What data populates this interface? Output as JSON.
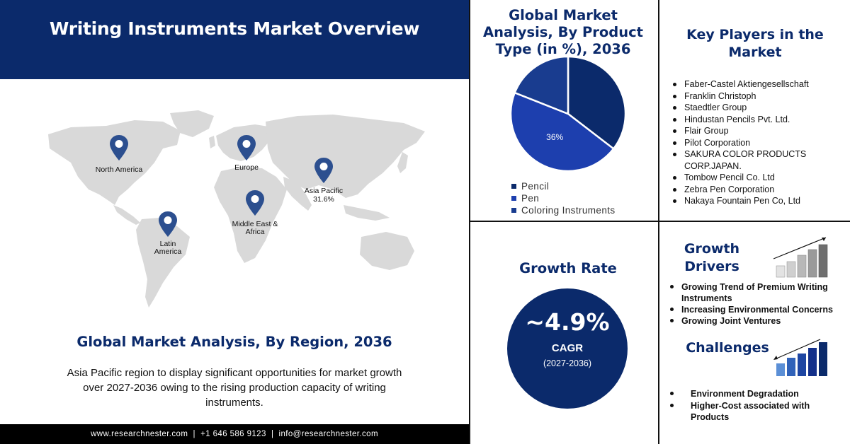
{
  "header": {
    "title": "Writing Instruments Market Overview"
  },
  "map": {
    "regions": [
      {
        "name": "North America",
        "value": ""
      },
      {
        "name": "Europe",
        "value": ""
      },
      {
        "name": "Asia Pacific",
        "value": "31.6%"
      },
      {
        "name": "Middle East & Africa",
        "value": ""
      },
      {
        "name": "Latin America",
        "value": ""
      }
    ],
    "pin_color": "#2c4f8f"
  },
  "region_section": {
    "title": "Global Market Analysis, By Region, 2036",
    "description": "Asia Pacific region to display significant opportunities for market growth over 2027-2036 owing to the rising production capacity of writing instruments."
  },
  "footer": {
    "contact": "www.researchnester.com  |  +1 646 586 9123  |  info@researchnester.com"
  },
  "product_section": {
    "title": "Global Market Analysis, By Product Type (in %), 2036"
  },
  "chart_data": {
    "type": "pie",
    "title": "Global Market Analysis, By Product Type (in %), 2036",
    "categories": [
      "Pencil",
      "Pen",
      "Coloring Instruments"
    ],
    "values": [
      28,
      36,
      15
    ],
    "data_labels": [
      "",
      "36%",
      ""
    ],
    "colors": [
      "#0b2a6b",
      "#1d3fae",
      "#193c8f"
    ],
    "legend_position": "bottom"
  },
  "key_players": {
    "title": "Key Players in the Market",
    "items": [
      "Faber-Castel Aktiengesellschaft",
      "Franklin Christoph",
      "Staedtler Group",
      "Hindustan Pencils Pvt. Ltd.",
      "Flair Group",
      "Pilot Corporation",
      "SAKURA COLOR PRODUCTS CORP.JAPAN.",
      "Tombow Pencil Co. Ltd",
      "Zebra Pen Corporation",
      "Nakaya Fountain Pen Co, Ltd"
    ]
  },
  "growth_rate": {
    "title": "Growth Rate",
    "value": "~4.9%",
    "label": "CAGR",
    "period": "(2027-2036)"
  },
  "growth_drivers": {
    "title": "Growth Drivers",
    "items": [
      "Growing Trend of Premium Writing Instruments",
      "Increasing Environmental Concerns",
      "Growing Joint Ventures"
    ]
  },
  "challenges": {
    "title": "Challenges",
    "items": [
      "Environment Degradation",
      "Higher-Cost associated with Products"
    ]
  },
  "colors": {
    "brand_navy": "#0b2a6b",
    "map_gray": "#d9d9d9"
  }
}
